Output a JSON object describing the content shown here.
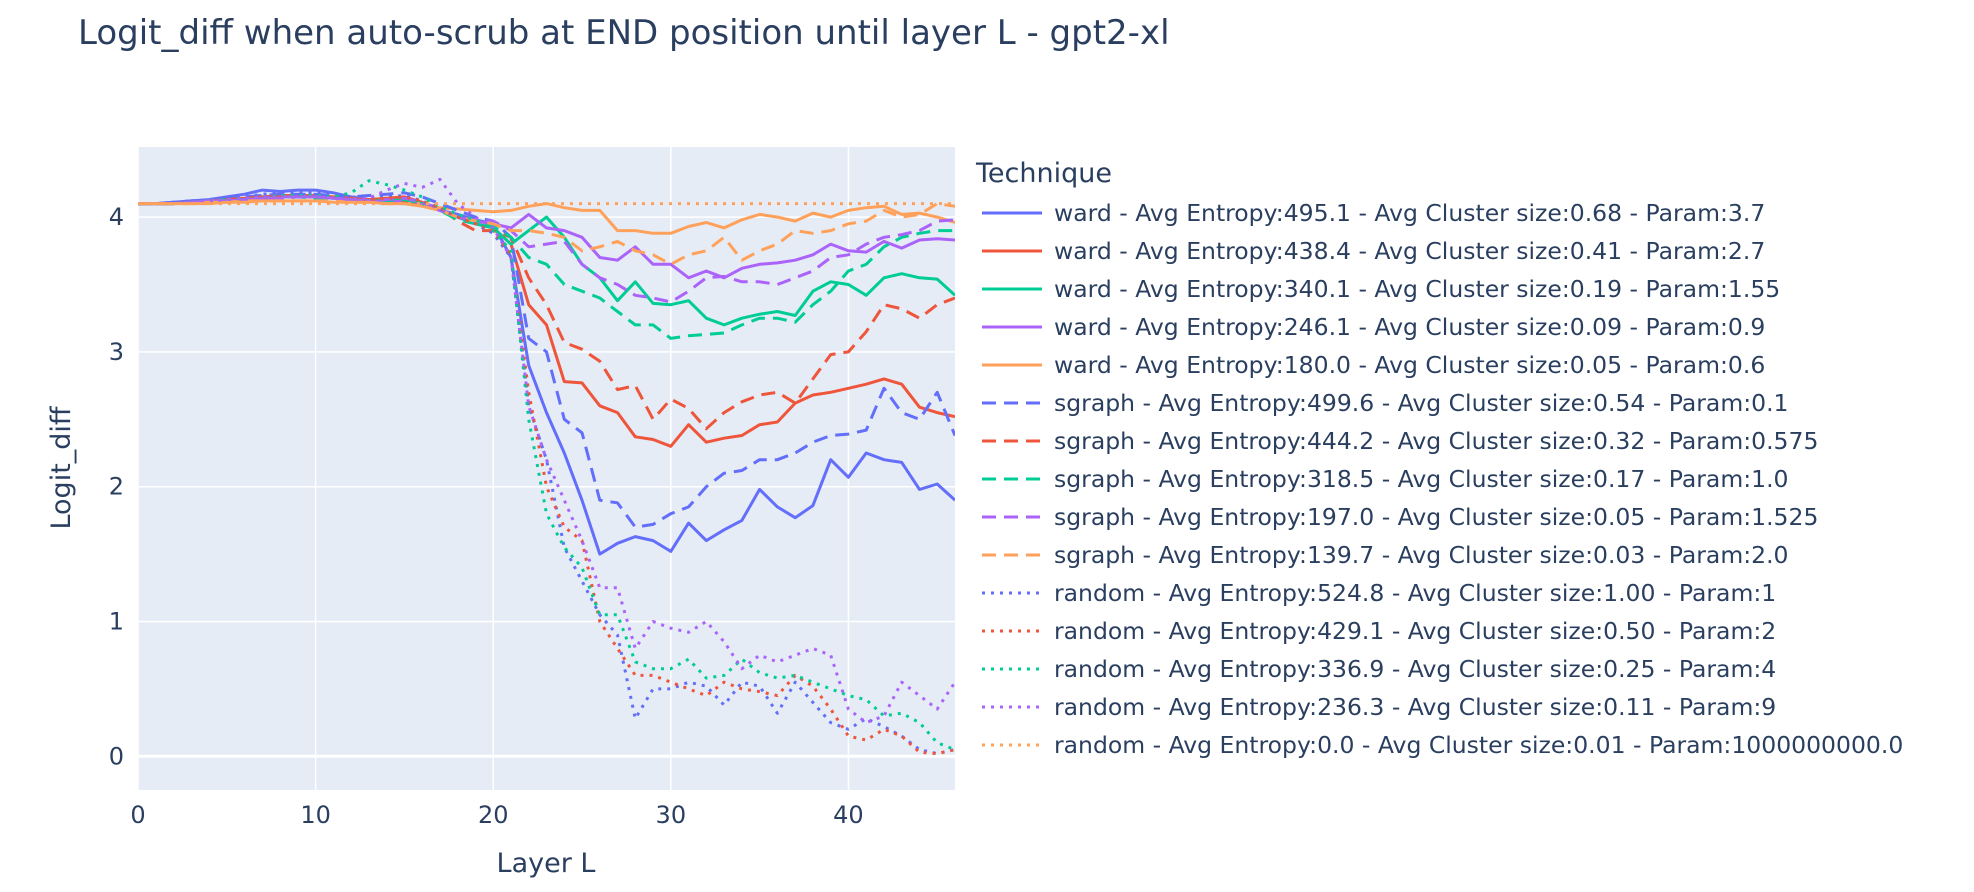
{
  "chart_data": {
    "type": "line",
    "title": "Logit_diff when auto-scrub at END position until layer L - gpt2-xl",
    "xlabel": "Layer L",
    "ylabel": "Logit_diff",
    "xlim": [
      0,
      46
    ],
    "ylim": [
      -0.25,
      4.52
    ],
    "xticks": [
      0,
      10,
      20,
      30,
      40
    ],
    "yticks": [
      0,
      1,
      2,
      3,
      4
    ],
    "grid": true,
    "legend_title": "Technique",
    "legend_position": "right",
    "x": [
      0,
      1,
      2,
      3,
      4,
      5,
      6,
      7,
      8,
      9,
      10,
      11,
      12,
      13,
      14,
      15,
      16,
      17,
      18,
      19,
      20,
      21,
      22,
      23,
      24,
      25,
      26,
      27,
      28,
      29,
      30,
      31,
      32,
      33,
      34,
      35,
      36,
      37,
      38,
      39,
      40,
      41,
      42,
      43,
      44,
      45,
      46
    ],
    "series": [
      {
        "name": "ward - Avg Entropy:495.1 - Avg Cluster size:0.68 - Param:3.7",
        "color": "#636efa",
        "dash": "solid",
        "values": [
          4.1,
          4.1,
          4.11,
          4.12,
          4.13,
          4.15,
          4.17,
          4.2,
          4.19,
          4.2,
          4.2,
          4.18,
          4.15,
          4.13,
          4.12,
          4.13,
          4.1,
          4.05,
          4.02,
          3.98,
          3.95,
          3.7,
          2.9,
          2.55,
          2.25,
          1.9,
          1.5,
          1.58,
          1.63,
          1.6,
          1.52,
          1.73,
          1.6,
          1.68,
          1.75,
          1.98,
          1.85,
          1.77,
          1.86,
          2.2,
          2.07,
          2.25,
          2.2,
          2.18,
          1.98,
          2.02,
          1.9
        ]
      },
      {
        "name": "ward - Avg Entropy:438.4 - Avg Cluster size:0.41 - Param:2.7",
        "color": "#ef553b",
        "dash": "solid",
        "values": [
          4.1,
          4.1,
          4.1,
          4.11,
          4.12,
          4.13,
          4.14,
          4.15,
          4.16,
          4.16,
          4.16,
          4.15,
          4.14,
          4.13,
          4.14,
          4.15,
          4.11,
          4.05,
          4.0,
          3.95,
          3.92,
          3.8,
          3.35,
          3.2,
          2.78,
          2.77,
          2.6,
          2.55,
          2.37,
          2.35,
          2.3,
          2.46,
          2.33,
          2.36,
          2.38,
          2.46,
          2.48,
          2.62,
          2.68,
          2.7,
          2.73,
          2.76,
          2.8,
          2.76,
          2.59,
          2.55,
          2.52
        ]
      },
      {
        "name": "ward - Avg Entropy:340.1 - Avg Cluster size:0.19 - Param:1.55",
        "color": "#00cc96",
        "dash": "solid",
        "values": [
          4.1,
          4.1,
          4.1,
          4.11,
          4.12,
          4.13,
          4.13,
          4.14,
          4.15,
          4.15,
          4.15,
          4.14,
          4.13,
          4.12,
          4.12,
          4.13,
          4.1,
          4.06,
          4.0,
          3.95,
          3.92,
          3.8,
          3.9,
          4.0,
          3.85,
          3.65,
          3.55,
          3.38,
          3.52,
          3.36,
          3.35,
          3.38,
          3.25,
          3.2,
          3.25,
          3.28,
          3.3,
          3.27,
          3.45,
          3.52,
          3.5,
          3.42,
          3.55,
          3.58,
          3.55,
          3.54,
          3.42
        ]
      },
      {
        "name": "ward - Avg Entropy:246.1 - Avg Cluster size:0.09 - Param:0.9",
        "color": "#ab63fa",
        "dash": "solid",
        "values": [
          4.1,
          4.1,
          4.1,
          4.11,
          4.12,
          4.12,
          4.13,
          4.14,
          4.15,
          4.15,
          4.15,
          4.14,
          4.13,
          4.12,
          4.11,
          4.12,
          4.09,
          4.05,
          4.0,
          3.97,
          3.95,
          3.92,
          4.02,
          3.92,
          3.9,
          3.85,
          3.7,
          3.68,
          3.78,
          3.65,
          3.65,
          3.55,
          3.6,
          3.55,
          3.62,
          3.65,
          3.66,
          3.68,
          3.72,
          3.8,
          3.75,
          3.74,
          3.82,
          3.77,
          3.83,
          3.84,
          3.83
        ]
      },
      {
        "name": "ward - Avg Entropy:180.0 - Avg Cluster size:0.05 - Param:0.6",
        "color": "#ffa15a",
        "dash": "solid",
        "values": [
          4.1,
          4.1,
          4.1,
          4.1,
          4.1,
          4.11,
          4.11,
          4.12,
          4.12,
          4.12,
          4.12,
          4.11,
          4.11,
          4.11,
          4.1,
          4.1,
          4.08,
          4.07,
          4.06,
          4.05,
          4.04,
          4.05,
          4.08,
          4.1,
          4.07,
          4.05,
          4.05,
          3.9,
          3.9,
          3.88,
          3.88,
          3.93,
          3.96,
          3.92,
          3.98,
          4.02,
          4.0,
          3.97,
          4.03,
          4.0,
          4.05,
          4.07,
          4.08,
          4.02,
          4.03,
          4.0,
          3.96
        ]
      },
      {
        "name": "sgraph - Avg Entropy:499.6 - Avg Cluster size:0.54 - Param:0.1",
        "color": "#636efa",
        "dash": "dash",
        "values": [
          4.1,
          4.1,
          4.11,
          4.12,
          4.12,
          4.14,
          4.15,
          4.16,
          4.17,
          4.17,
          4.17,
          4.16,
          4.15,
          4.16,
          4.17,
          4.18,
          4.15,
          4.1,
          4.05,
          4.0,
          3.97,
          3.85,
          3.1,
          3.0,
          2.5,
          2.4,
          1.9,
          1.88,
          1.7,
          1.72,
          1.8,
          1.85,
          2.0,
          2.1,
          2.12,
          2.2,
          2.2,
          2.25,
          2.33,
          2.38,
          2.39,
          2.42,
          2.73,
          2.55,
          2.5,
          2.7,
          2.38
        ]
      },
      {
        "name": "sgraph - Avg Entropy:444.2 - Avg Cluster size:0.32 - Param:0.575",
        "color": "#ef553b",
        "dash": "dash",
        "values": [
          4.1,
          4.1,
          4.1,
          4.11,
          4.12,
          4.13,
          4.14,
          4.15,
          4.15,
          4.15,
          4.15,
          4.14,
          4.13,
          4.12,
          4.12,
          4.12,
          4.1,
          4.07,
          3.97,
          3.9,
          3.9,
          3.85,
          3.55,
          3.35,
          3.07,
          3.02,
          2.93,
          2.72,
          2.75,
          2.5,
          2.65,
          2.58,
          2.43,
          2.55,
          2.63,
          2.68,
          2.7,
          2.62,
          2.8,
          2.98,
          3.0,
          3.15,
          3.35,
          3.32,
          3.25,
          3.35,
          3.4
        ]
      },
      {
        "name": "sgraph - Avg Entropy:318.5 - Avg Cluster size:0.17 - Param:1.0",
        "color": "#00cc96",
        "dash": "dash",
        "values": [
          4.1,
          4.1,
          4.1,
          4.11,
          4.12,
          4.12,
          4.13,
          4.14,
          4.14,
          4.15,
          4.14,
          4.14,
          4.13,
          4.12,
          4.12,
          4.13,
          4.1,
          4.05,
          3.98,
          3.95,
          3.93,
          3.85,
          3.7,
          3.65,
          3.5,
          3.45,
          3.4,
          3.3,
          3.2,
          3.2,
          3.1,
          3.12,
          3.13,
          3.14,
          3.2,
          3.25,
          3.25,
          3.22,
          3.35,
          3.45,
          3.6,
          3.65,
          3.78,
          3.85,
          3.88,
          3.9,
          3.9
        ]
      },
      {
        "name": "sgraph - Avg Entropy:197.0 - Avg Cluster size:0.05 - Param:1.525",
        "color": "#ab63fa",
        "dash": "dash",
        "values": [
          4.1,
          4.1,
          4.1,
          4.11,
          4.12,
          4.12,
          4.13,
          4.14,
          4.14,
          4.15,
          4.15,
          4.14,
          4.13,
          4.12,
          4.13,
          4.14,
          4.11,
          4.06,
          4.0,
          3.98,
          3.97,
          3.9,
          3.78,
          3.8,
          3.82,
          3.65,
          3.55,
          3.5,
          3.42,
          3.4,
          3.37,
          3.45,
          3.55,
          3.56,
          3.52,
          3.52,
          3.5,
          3.55,
          3.6,
          3.7,
          3.72,
          3.8,
          3.85,
          3.87,
          3.9,
          3.97,
          3.98
        ]
      },
      {
        "name": "sgraph - Avg Entropy:139.7 - Avg Cluster size:0.03 - Param:2.0",
        "color": "#ffa15a",
        "dash": "dash",
        "values": [
          4.1,
          4.1,
          4.1,
          4.1,
          4.11,
          4.11,
          4.12,
          4.12,
          4.12,
          4.12,
          4.12,
          4.12,
          4.11,
          4.11,
          4.1,
          4.1,
          4.08,
          4.05,
          4.0,
          3.97,
          3.95,
          3.9,
          3.9,
          3.88,
          3.85,
          3.75,
          3.78,
          3.82,
          3.75,
          3.72,
          3.65,
          3.72,
          3.75,
          3.85,
          3.68,
          3.75,
          3.8,
          3.9,
          3.88,
          3.9,
          3.95,
          3.97,
          4.05,
          4.0,
          4.02,
          4.1,
          4.08
        ]
      },
      {
        "name": "random - Avg Entropy:524.8 - Avg Cluster size:1.00 - Param:1",
        "color": "#636efa",
        "dash": "dot",
        "values": [
          4.1,
          4.1,
          4.11,
          4.12,
          4.13,
          4.14,
          4.15,
          4.17,
          4.18,
          4.18,
          4.18,
          4.16,
          4.15,
          4.14,
          4.15,
          4.16,
          4.12,
          4.06,
          4.0,
          3.95,
          3.88,
          3.7,
          2.6,
          2.2,
          1.55,
          1.3,
          1.05,
          0.9,
          0.28,
          0.5,
          0.5,
          0.55,
          0.52,
          0.38,
          0.55,
          0.52,
          0.32,
          0.55,
          0.4,
          0.25,
          0.2,
          0.28,
          0.22,
          0.15,
          0.05,
          0.02,
          0.05
        ]
      },
      {
        "name": "random - Avg Entropy:429.1 - Avg Cluster size:0.50 - Param:2",
        "color": "#ef553b",
        "dash": "dot",
        "values": [
          4.1,
          4.1,
          4.1,
          4.11,
          4.12,
          4.13,
          4.14,
          4.15,
          4.16,
          4.16,
          4.16,
          4.15,
          4.14,
          4.13,
          4.14,
          4.15,
          4.12,
          4.07,
          4.0,
          3.95,
          3.9,
          3.72,
          2.7,
          2.0,
          1.7,
          1.6,
          1.0,
          0.8,
          0.6,
          0.6,
          0.55,
          0.5,
          0.45,
          0.55,
          0.5,
          0.48,
          0.45,
          0.6,
          0.52,
          0.35,
          0.15,
          0.12,
          0.2,
          0.15,
          0.03,
          0.02,
          0.05
        ]
      },
      {
        "name": "random - Avg Entropy:336.9 - Avg Cluster size:0.25 - Param:4",
        "color": "#00cc96",
        "dash": "dot",
        "values": [
          4.1,
          4.1,
          4.1,
          4.11,
          4.12,
          4.13,
          4.14,
          4.15,
          4.16,
          4.16,
          4.16,
          4.15,
          4.18,
          4.27,
          4.24,
          4.2,
          4.15,
          4.08,
          4.02,
          3.98,
          3.9,
          3.75,
          2.5,
          1.8,
          1.55,
          1.4,
          1.05,
          1.05,
          0.7,
          0.65,
          0.65,
          0.72,
          0.58,
          0.6,
          0.72,
          0.62,
          0.58,
          0.6,
          0.55,
          0.5,
          0.45,
          0.42,
          0.3,
          0.32,
          0.25,
          0.1,
          0.05
        ]
      },
      {
        "name": "random - Avg Entropy:236.3 - Avg Cluster size:0.11 - Param:9",
        "color": "#ab63fa",
        "dash": "dot",
        "values": [
          4.1,
          4.1,
          4.1,
          4.11,
          4.12,
          4.13,
          4.14,
          4.15,
          4.15,
          4.15,
          4.15,
          4.14,
          4.13,
          4.14,
          4.2,
          4.25,
          4.22,
          4.28,
          4.1,
          4.0,
          3.92,
          3.7,
          2.6,
          2.2,
          1.9,
          1.6,
          1.25,
          1.25,
          0.8,
          1.0,
          0.95,
          0.92,
          1.0,
          0.85,
          0.65,
          0.75,
          0.7,
          0.75,
          0.8,
          0.75,
          0.35,
          0.25,
          0.3,
          0.55,
          0.45,
          0.35,
          0.55
        ]
      },
      {
        "name": "random - Avg Entropy:0.0 - Avg Cluster size:0.01 - Param:1000000000.0",
        "color": "#ffa15a",
        "dash": "dot",
        "values": [
          4.1,
          4.1,
          4.1,
          4.1,
          4.1,
          4.1,
          4.1,
          4.1,
          4.1,
          4.1,
          4.1,
          4.1,
          4.1,
          4.1,
          4.1,
          4.1,
          4.1,
          4.1,
          4.1,
          4.1,
          4.1,
          4.1,
          4.1,
          4.1,
          4.1,
          4.1,
          4.1,
          4.1,
          4.1,
          4.1,
          4.1,
          4.1,
          4.1,
          4.1,
          4.1,
          4.1,
          4.1,
          4.1,
          4.1,
          4.1,
          4.1,
          4.1,
          4.1,
          4.1,
          4.1,
          4.1,
          4.1
        ]
      }
    ]
  }
}
